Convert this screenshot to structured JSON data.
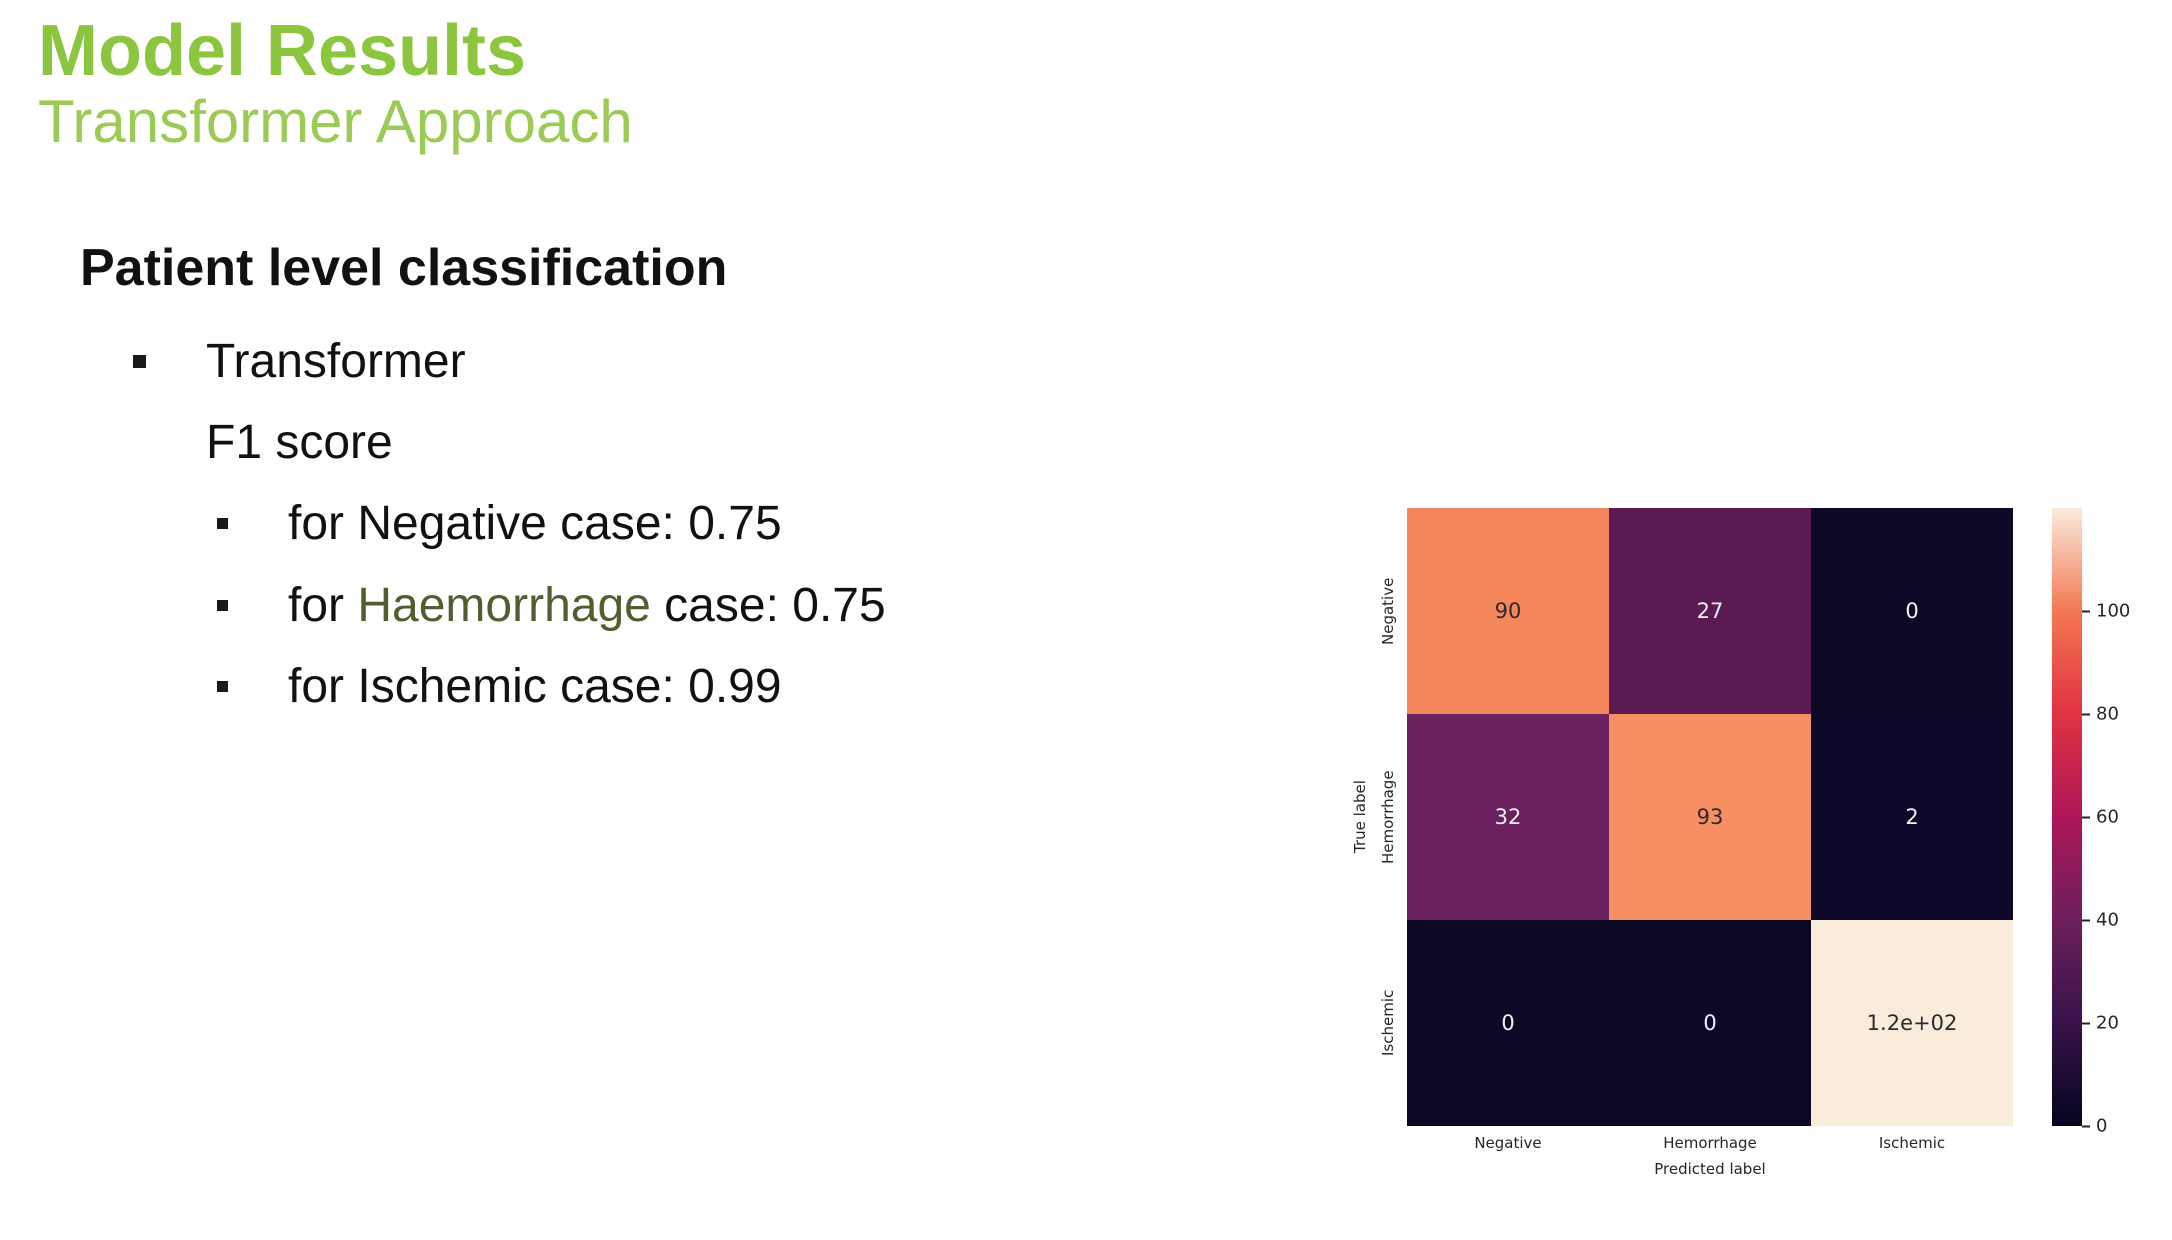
{
  "slide": {
    "title": "Model Results",
    "subtitle": "Transformer Approach",
    "heading": "Patient level classification",
    "bullets": {
      "level1": "Transformer",
      "level1_cont": "F1 score",
      "sub": [
        {
          "prefix": "for ",
          "term": "Negative",
          "suffix": " case: 0.75"
        },
        {
          "prefix": "for ",
          "term": "Haemorrhage",
          "suffix": " case: 0.75"
        },
        {
          "prefix": "for ",
          "term": "Ischemic",
          "suffix": " case: 0.99"
        }
      ]
    },
    "colors": {
      "title_green": "#8CC63F",
      "subtitle_green": "#9BCB55",
      "highlight_term_green": "#4F5F2D",
      "body_text": "#111111"
    }
  },
  "chart_data": {
    "type": "heatmap",
    "xlabel": "Predicted label",
    "ylabel": "True label",
    "x_categories": [
      "Negative",
      "Hemorrhage",
      "Ischemic"
    ],
    "y_categories": [
      "Negative",
      "Hemorrhage",
      "Ischemic"
    ],
    "values": [
      [
        90,
        27,
        0
      ],
      [
        32,
        93,
        2
      ],
      [
        0,
        0,
        120
      ]
    ],
    "vmin": 0,
    "vmax": 120,
    "colormap": "rocket",
    "colorbar_ticks": [
      "0",
      "20",
      "40",
      "60",
      "80",
      "100"
    ],
    "cells": [
      {
        "label": "90",
        "bg": "#f5875c",
        "fg": "#2b2b2b"
      },
      {
        "label": "27",
        "bg": "#5c1a55",
        "fg": "#f2f2f2"
      },
      {
        "label": "0",
        "bg": "#0d0826",
        "fg": "#f2f2f2"
      },
      {
        "label": "32",
        "bg": "#6b2060",
        "fg": "#f2f2f2"
      },
      {
        "label": "93",
        "bg": "#f78f63",
        "fg": "#2b2b2b"
      },
      {
        "label": "2",
        "bg": "#0f0929",
        "fg": "#f2f2f2"
      },
      {
        "label": "0",
        "bg": "#0d0826",
        "fg": "#f2f2f2"
      },
      {
        "label": "0",
        "bg": "#0d0826",
        "fg": "#f2f2f2"
      },
      {
        "label": "1.2e+02",
        "bg": "#f9ecdb",
        "fg": "#2b2b2b"
      }
    ],
    "colorbar_gradient": [
      "#04051e 0%",
      "#38124a 17%",
      "#6c1f5c 33%",
      "#ad1759 50%",
      "#e13342 67%",
      "#f37651 83%",
      "#faebdd 100%"
    ]
  }
}
